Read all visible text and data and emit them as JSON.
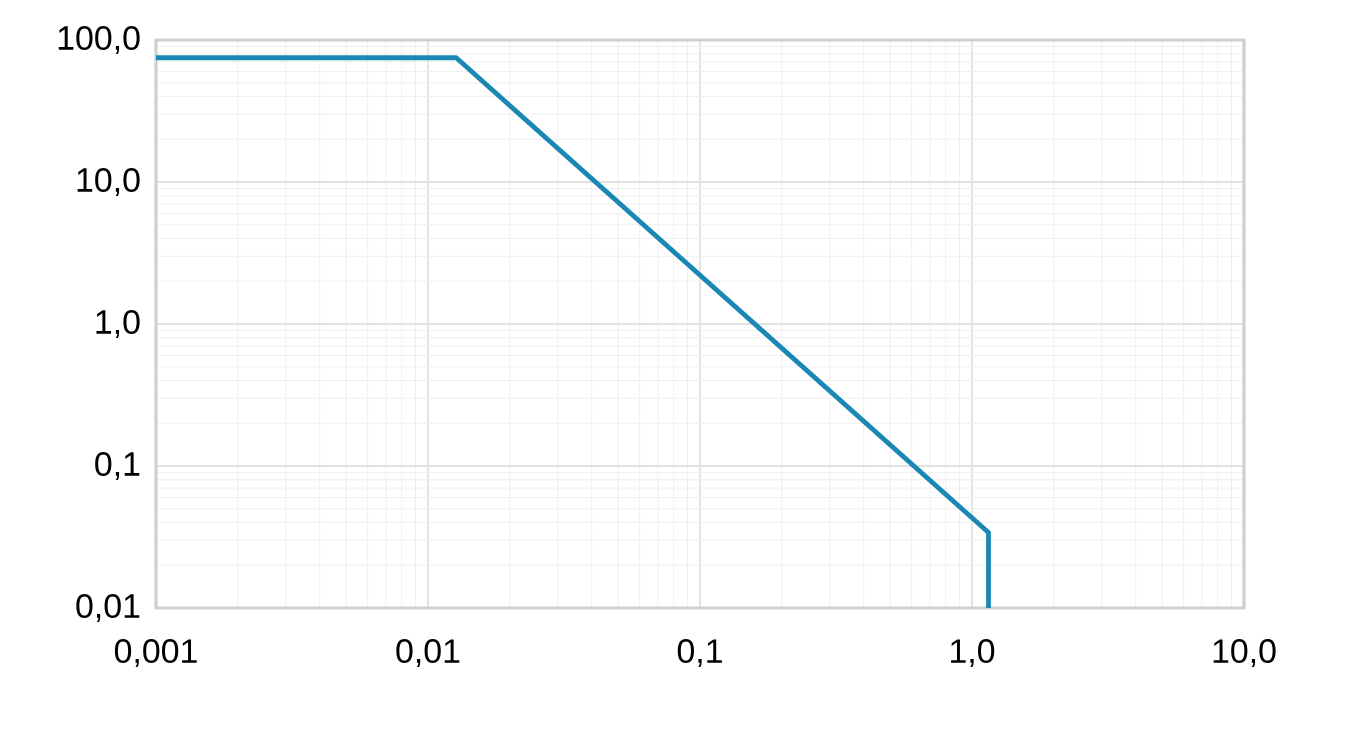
{
  "chart_data": {
    "type": "line",
    "log": "xy",
    "grid": true,
    "marker": "none",
    "line_style": "solid",
    "x": [
      0.001,
      0.0127,
      1.15,
      1.15
    ],
    "series": [
      {
        "color": "#1a87b5",
        "values": [
          75,
          75,
          0.034,
          0.01
        ]
      }
    ],
    "xlim": [
      0.001,
      10
    ],
    "ylim": [
      0.01,
      100
    ],
    "xticks": [
      {
        "value": 0.001,
        "label": "0,001"
      },
      {
        "value": 0.01,
        "label": "0,01"
      },
      {
        "value": 0.1,
        "label": "0,1"
      },
      {
        "value": 1,
        "label": "1,0"
      },
      {
        "value": 10,
        "label": "10,0"
      }
    ],
    "yticks": [
      {
        "value": 0.01,
        "label": "0,01"
      },
      {
        "value": 0.1,
        "label": "0,1"
      },
      {
        "value": 1,
        "label": "1,0"
      },
      {
        "value": 10,
        "label": "10,0"
      },
      {
        "value": 100,
        "label": "100,0"
      }
    ]
  }
}
